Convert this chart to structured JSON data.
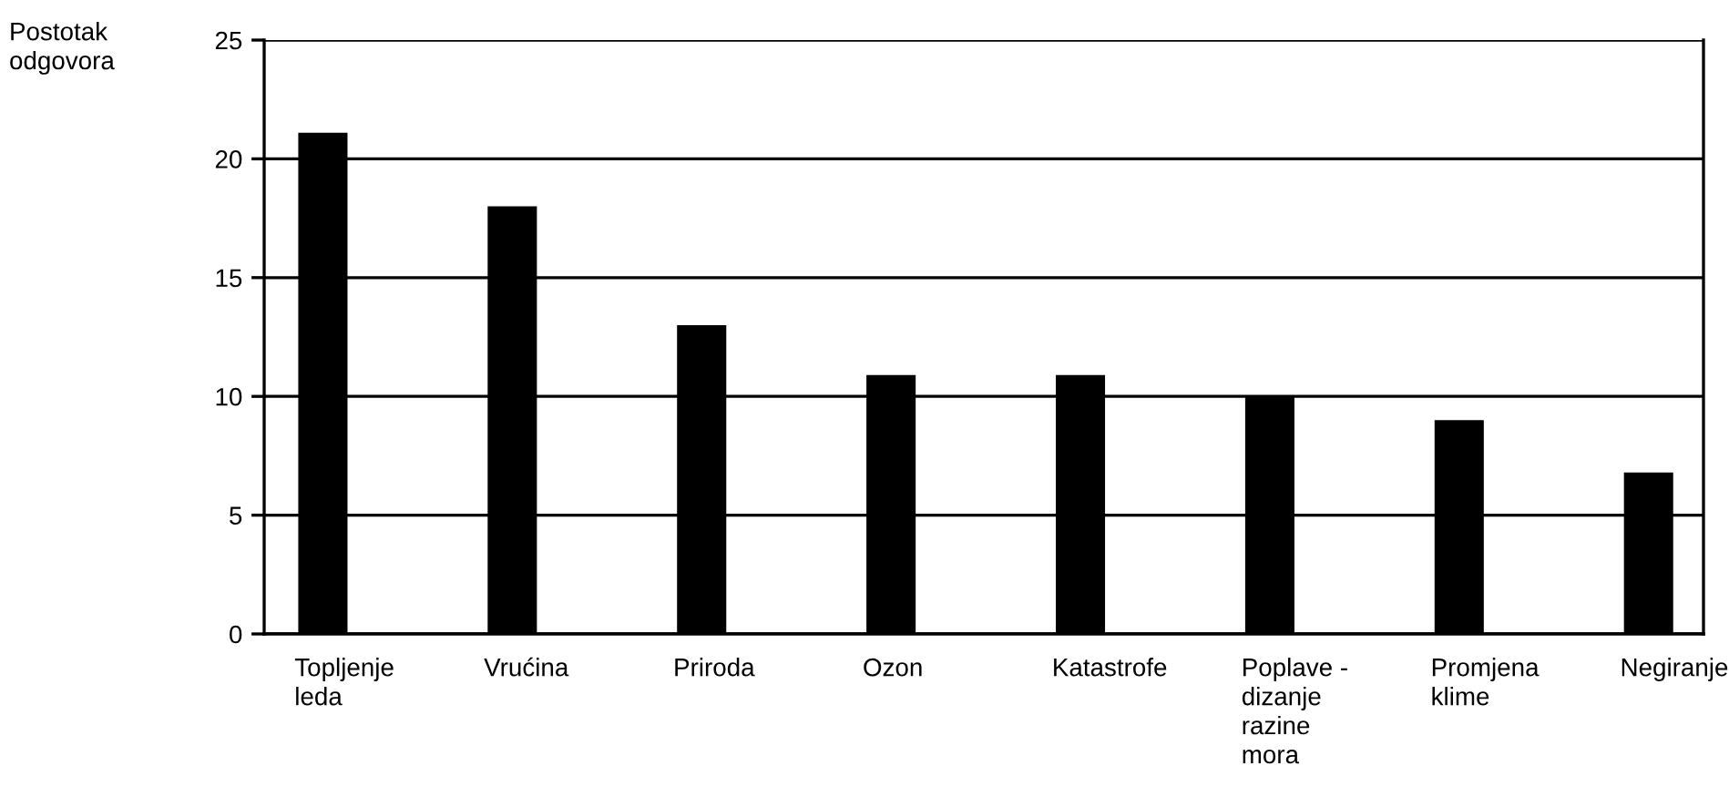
{
  "chart_data": {
    "type": "bar",
    "ylabel": "Postotak odgovora",
    "categories": [
      "Topljenje leda",
      "Vrućina",
      "Priroda",
      "Ozon",
      "Katastrofe",
      "Poplave - dizanje razine mora",
      "Promjena klime",
      "Negiranje"
    ],
    "values": [
      21.1,
      18.0,
      13.0,
      10.9,
      10.9,
      10.0,
      9.0,
      6.8
    ],
    "color": "#000000",
    "ylim": [
      0,
      25
    ],
    "yticks": [
      0,
      5,
      10,
      15,
      20,
      25
    ],
    "grid": "y",
    "legend": false
  }
}
